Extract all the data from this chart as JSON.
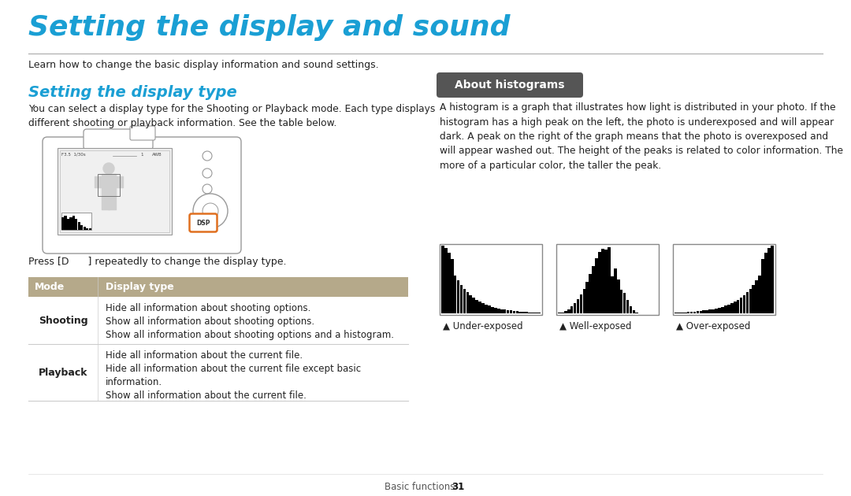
{
  "title": "Setting the display and sound",
  "title_color": "#1a9fd4",
  "subtitle": "Learn how to change the basic display information and sound settings.",
  "section1_title": "Setting the display type",
  "section1_color": "#1a9fd4",
  "section1_body": "You can select a display type for the Shooting or Playback mode. Each type displays\ndifferent shooting or playback information. See the table below.",
  "press_text": "Press [D      ] repeatedly to change the display type.",
  "table_header_bg": "#b5a98a",
  "table_header_color": "#ffffff",
  "table_col1": "Mode",
  "table_col2": "Display type",
  "section2_title": "About histograms",
  "section2_title_bg": "#555555",
  "section2_title_color": "#ffffff",
  "section2_body": "A histogram is a graph that illustrates how light is distributed in your photo. If the\nhistogram has a high peak on the left, the photo is underexposed and will appear\ndark. A peak on the right of the graph means that the photo is overexposed and\nwill appear washed out. The height of the peaks is related to color information. The\nmore of a particular color, the taller the peak.",
  "histogram_labels": [
    "Under-exposed",
    "Well-exposed",
    "Over-exposed"
  ],
  "footer_text": "Basic functions",
  "footer_page": "31",
  "bg_color": "#ffffff",
  "divider_color": "#aaaaaa",
  "body_color": "#222222"
}
